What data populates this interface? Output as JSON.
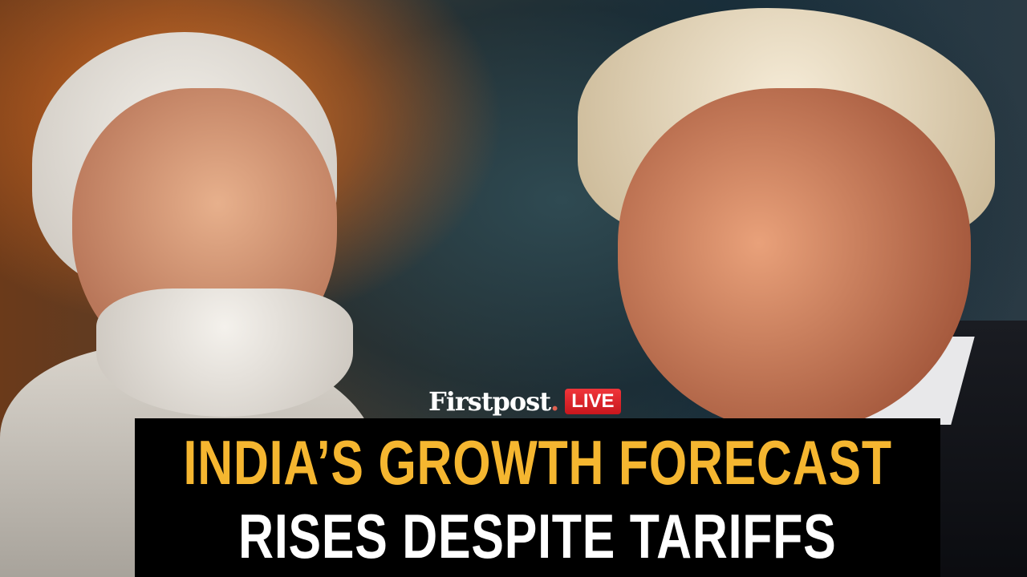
{
  "brand": {
    "name": "Firstpost",
    "live_badge": "LIVE",
    "live_color": "#e02a2e"
  },
  "headline": {
    "line1": "INDIA’S GROWTH FORECAST",
    "line2": "RISES DESPITE TARIFFS",
    "line1_color": "#f5b630",
    "line2_color": "#ffffff"
  }
}
